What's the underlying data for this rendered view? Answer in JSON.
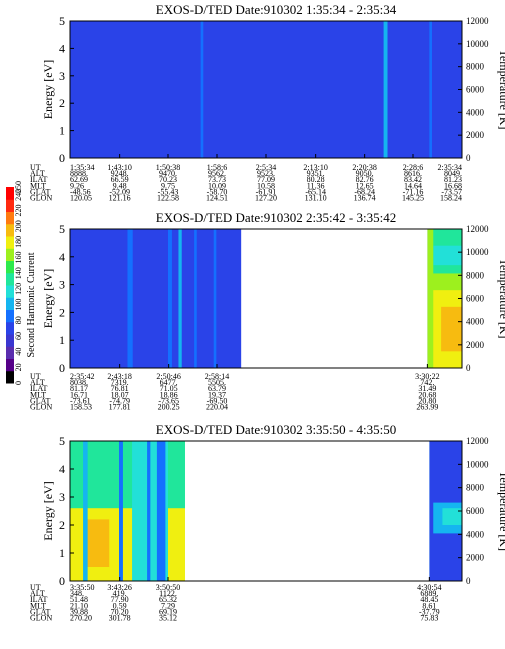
{
  "page": {
    "colorbar_label": "Second Harmonic Current",
    "colorbar_ticks": [
      "0",
      "20",
      "40",
      "60",
      "80",
      "100",
      "120",
      "140",
      "160",
      "180",
      "200",
      "220",
      "240",
      "250"
    ],
    "colorbar_colors": [
      "#000000",
      "#550088",
      "#5a2dae",
      "#3a37d0",
      "#2a43e8",
      "#1470ff",
      "#15b5f0",
      "#22e0d8",
      "#20e69b",
      "#2eea4c",
      "#9df01e",
      "#f0ef10",
      "#f7bb10",
      "#ff7a10",
      "#ff2a10",
      "#ff0000"
    ]
  },
  "chart_data": [
    {
      "type": "heatmap",
      "title": "EXOS-D/TED   Date:910302   1:35:34 - 2:35:34",
      "ylabel": "Energy [eV]",
      "ylabel_right": "Temperature [K]",
      "ylim": [
        0,
        5
      ],
      "yticks": [
        "0",
        "1",
        "2",
        "3",
        "4",
        "5"
      ],
      "y2lim": [
        0,
        12000
      ],
      "y2ticks": [
        "0",
        "2000",
        "4000",
        "6000",
        "8000",
        "10000",
        "12000"
      ],
      "x_range_minutes": [
        0,
        60
      ],
      "background_value": 70,
      "gap_minutes": [],
      "columns": [
        {
          "t": 20,
          "w": 0.4,
          "value": 78
        },
        {
          "t": 48,
          "w": 0.6,
          "value": 95
        },
        {
          "t": 55,
          "w": 0.4,
          "value": 82
        }
      ],
      "orbit_labels": [
        "UT",
        "ALT",
        "ILAT",
        "MLT",
        "GLAT",
        "GLON"
      ],
      "orbit_columns": [
        {
          "t": 0,
          "UT": "1:35:34",
          "ALT": "8888.",
          "ILAT": "62.69",
          "MLT": "9.26",
          "GLAT": "-48.56",
          "GLON": "120.05"
        },
        {
          "t": 7.6,
          "UT": "1:43:10",
          "ALT": "9248.",
          "ILAT": "66.59",
          "MLT": "9.48",
          "GLAT": "-52.09",
          "GLON": "121.16"
        },
        {
          "t": 15.0,
          "UT": "1:50:38",
          "ALT": "9470.",
          "ILAT": "70.23",
          "MLT": "9.75",
          "GLAT": "-55.43",
          "GLON": "122.58"
        },
        {
          "t": 22.5,
          "UT": "1:58:6",
          "ALT": "9562.",
          "ILAT": "73.73",
          "MLT": "10.09",
          "GLAT": "-58.70",
          "GLON": "124.51"
        },
        {
          "t": 30.0,
          "UT": "2:5:34",
          "ALT": "9523.",
          "ILAT": "77.09",
          "MLT": "10.58",
          "GLAT": "-61.91",
          "GLON": "127.20"
        },
        {
          "t": 37.6,
          "UT": "2:13:10",
          "ALT": "9351.",
          "ILAT": "80.28",
          "MLT": "11.36",
          "GLAT": "-65.14",
          "GLON": "131.10"
        },
        {
          "t": 45.1,
          "UT": "2:20:38",
          "ALT": "9050.",
          "ILAT": "82.76",
          "MLT": "12.65",
          "GLAT": "-68.24",
          "GLON": "136.74"
        },
        {
          "t": 52.5,
          "UT": "2:28:6",
          "ALT": "8616.",
          "ILAT": "83.42",
          "MLT": "14.64",
          "GLAT": "-71.16",
          "GLON": "145.25"
        },
        {
          "t": 60,
          "UT": "2:35:34",
          "ALT": "8049.",
          "ILAT": "81.23",
          "MLT": "16.68",
          "GLAT": "-73.57",
          "GLON": "158.24"
        }
      ]
    },
    {
      "type": "heatmap",
      "title": "EXOS-D/TED   Date:910302   2:35:42 - 3:35:42",
      "ylabel": "Energy [eV]",
      "ylabel_right": "Temperature [K]",
      "ylim": [
        0,
        5
      ],
      "yticks": [
        "0",
        "1",
        "2",
        "3",
        "4",
        "5"
      ],
      "y2lim": [
        0,
        12000
      ],
      "y2ticks": [
        "0",
        "2000",
        "4000",
        "6000",
        "8000",
        "10000",
        "12000"
      ],
      "x_range_minutes": [
        0,
        60
      ],
      "background_value": 70,
      "gap_minutes": [
        [
          26.2,
          54.7
        ]
      ],
      "columns": [
        {
          "t": 8.8,
          "w": 0.8,
          "value": 78
        },
        {
          "t": 15.0,
          "w": 0.6,
          "value": 88
        },
        {
          "t": 16.6,
          "w": 0.5,
          "value": 92
        },
        {
          "t": 19.0,
          "w": 0.4,
          "value": 80
        },
        {
          "t": 22.0,
          "w": 0.4,
          "value": 76
        }
      ],
      "right_blocks": [
        {
          "t0": 54.7,
          "t1": 60,
          "y0": 0,
          "y1": 5,
          "value": 180
        },
        {
          "t0": 54.7,
          "t1": 60,
          "y0": 3.4,
          "y1": 5,
          "value": 130
        },
        {
          "t0": 55.6,
          "t1": 60,
          "y0": 3.7,
          "y1": 4.4,
          "value": 120
        },
        {
          "t0": 54.7,
          "t1": 60,
          "y0": 2.8,
          "y1": 3.4,
          "value": 160
        },
        {
          "t0": 56.8,
          "t1": 60,
          "y0": 0.6,
          "y1": 2.2,
          "value": 195
        },
        {
          "t0": 54.7,
          "t1": 55.6,
          "y0": 0,
          "y1": 5,
          "value": 160
        }
      ],
      "orbit_labels": [
        "UT",
        "ALT",
        "ILAT",
        "MLT",
        "GLAT",
        "GLON"
      ],
      "orbit_columns": [
        {
          "t": 0,
          "UT": "2:35:42",
          "ALT": "8038.",
          "ILAT": "81.17",
          "MLT": "16.71",
          "GLAT": "-73.61",
          "GLON": "158.53"
        },
        {
          "t": 7.6,
          "UT": "2:43:18",
          "ALT": "7319.",
          "ILAT": "76.81",
          "MLT": "18.07",
          "GLAT": "-74.79",
          "GLON": "177.81"
        },
        {
          "t": 15.1,
          "UT": "2:50:46",
          "ALT": "6477.",
          "ILAT": "71.05",
          "MLT": "18.86",
          "GLAT": "-73.65",
          "GLON": "200.25"
        },
        {
          "t": 22.5,
          "UT": "2:58:14",
          "ALT": "5505.",
          "ILAT": "63.79",
          "MLT": "19.37",
          "GLAT": "-69.50",
          "GLON": "220.04"
        },
        {
          "t": 54.7,
          "UT": "3:30:22",
          "ALT": "742.",
          "ILAT": "31.49",
          "MLT": "20.68",
          "GLAT": "20.80",
          "GLON": "263.99"
        }
      ]
    },
    {
      "type": "heatmap",
      "title": "EXOS-D/TED   Date:910302   3:35:50 - 4:35:50",
      "ylabel": "Energy [eV]",
      "ylabel_right": "Temperature [K]",
      "ylim": [
        0,
        5
      ],
      "yticks": [
        "0",
        "1",
        "2",
        "3",
        "4",
        "5"
      ],
      "y2lim": [
        0,
        12000
      ],
      "y2ticks": [
        "0",
        "2000",
        "4000",
        "6000",
        "8000",
        "10000",
        "12000"
      ],
      "x_range_minutes": [
        0,
        60
      ],
      "background_value": 120,
      "gap_minutes": [
        [
          17.6,
          55.0
        ]
      ],
      "left_blocks": [
        {
          "t0": 0,
          "t1": 17.6,
          "y0": 0,
          "y1": 5,
          "value": 130
        },
        {
          "t0": 0,
          "t1": 17.6,
          "y0": 0,
          "y1": 2.6,
          "value": 185
        },
        {
          "t0": 2.0,
          "t1": 6.0,
          "y0": 0.5,
          "y1": 2.2,
          "value": 200
        },
        {
          "t0": 9.5,
          "t1": 15.0,
          "y0": 0,
          "y1": 5,
          "value": 115
        },
        {
          "t0": 13.3,
          "t1": 14.6,
          "y0": 0,
          "y1": 5,
          "value": 80
        }
      ],
      "columns": [
        {
          "t": 2.0,
          "w": 0.7,
          "value": 95
        },
        {
          "t": 7.5,
          "w": 0.6,
          "value": 90
        },
        {
          "t": 11.8,
          "w": 0.5,
          "value": 88
        }
      ],
      "right_blocks": [
        {
          "t0": 55.0,
          "t1": 60,
          "y0": 0,
          "y1": 5,
          "value": 72
        },
        {
          "t0": 55.6,
          "t1": 60,
          "y0": 1.7,
          "y1": 2.8,
          "value": 95
        },
        {
          "t0": 57.0,
          "t1": 60,
          "y0": 2.0,
          "y1": 2.6,
          "value": 110
        }
      ],
      "orbit_labels": [
        "UT",
        "ALT",
        "ILAT",
        "MLT",
        "GLAT",
        "GLON"
      ],
      "orbit_columns": [
        {
          "t": 0,
          "UT": "3:35:50",
          "ALT": "348.",
          "ILAT": "51.48",
          "MLT": "21.10",
          "GLAT": "39.88",
          "GLON": "270.20"
        },
        {
          "t": 7.6,
          "UT": "3:43:26",
          "ALT": "419.",
          "ILAT": "77.90",
          "MLT": "0.59",
          "GLAT": "70.20",
          "GLON": "301.78"
        },
        {
          "t": 15.0,
          "UT": "3:50:50",
          "ALT": "1122.",
          "ILAT": "65.32",
          "MLT": "7.29",
          "GLAT": "69.19",
          "GLON": "35.12"
        },
        {
          "t": 55.0,
          "UT": "4:30:54",
          "ALT": "6889.",
          "ILAT": "48.45",
          "MLT": "8.61",
          "GLAT": "-37.79",
          "GLON": "75.83"
        }
      ]
    }
  ]
}
